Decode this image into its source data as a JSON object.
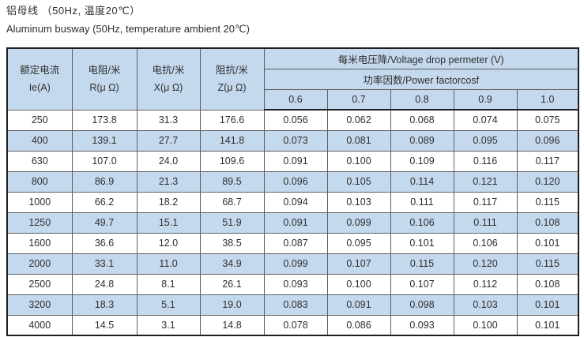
{
  "page": {
    "title_zh": "铝母线 （50Hz, 温度20℃）",
    "title_en": "Aluminum busway (50Hz, temperature ambient 20℃)"
  },
  "table": {
    "col_headers": [
      {
        "line1": "额定电流",
        "line2": "Ie(A)"
      },
      {
        "line1": "电阻/米",
        "line2": "R(μ Ω)"
      },
      {
        "line1": "电抗/米",
        "line2": "X(μ Ω)"
      },
      {
        "line1": "阻抗/米",
        "line2": "Z(μ Ω)"
      }
    ],
    "voltage_drop_header": "每米电压降/Voltage drop permeter (V)",
    "power_factor_header": "功率因数/Power factorcosf",
    "power_factors": [
      "0.6",
      "0.7",
      "0.8",
      "0.9",
      "1.0"
    ],
    "rows": [
      [
        "250",
        "173.8",
        "31.3",
        "176.6",
        "0.056",
        "0.062",
        "0.068",
        "0.074",
        "0.075"
      ],
      [
        "400",
        "139.1",
        "27.7",
        "141.8",
        "0.073",
        "0.081",
        "0.089",
        "0.095",
        "0.096"
      ],
      [
        "630",
        "107.0",
        "24.0",
        "109.6",
        "0.091",
        "0.100",
        "0.109",
        "0.116",
        "0.117"
      ],
      [
        "800",
        "86.9",
        "21.3",
        "89.5",
        "0.096",
        "0.105",
        "0.114",
        "0.121",
        "0.120"
      ],
      [
        "1000",
        "66.2",
        "18.2",
        "68.7",
        "0.094",
        "0.103",
        "0.111",
        "0.117",
        "0.115"
      ],
      [
        "1250",
        "49.7",
        "15.1",
        "51.9",
        "0.091",
        "0.099",
        "0.106",
        "0.111",
        "0.108"
      ],
      [
        "1600",
        "36.6",
        "12.0",
        "38.5",
        "0.087",
        "0.095",
        "0.101",
        "0.106",
        "0.101"
      ],
      [
        "2000",
        "33.1",
        "11.0",
        "34.9",
        "0.099",
        "0.107",
        "0.115",
        "0.120",
        "0.115"
      ],
      [
        "2500",
        "24.8",
        "8.1",
        "26.1",
        "0.093",
        "0.100",
        "0.107",
        "0.112",
        "0.108"
      ],
      [
        "3200",
        "18.3",
        "5.1",
        "19.0",
        "0.083",
        "0.091",
        "0.098",
        "0.103",
        "0.101"
      ],
      [
        "4000",
        "14.5",
        "3.1",
        "14.8",
        "0.078",
        "0.086",
        "0.093",
        "0.100",
        "0.101"
      ]
    ]
  },
  "colors": {
    "stripe_blue": "#c5d9ee",
    "border_outer": "#1f1f1f",
    "border_inner": "#5f5f5f",
    "text": "#2e2e2e"
  }
}
